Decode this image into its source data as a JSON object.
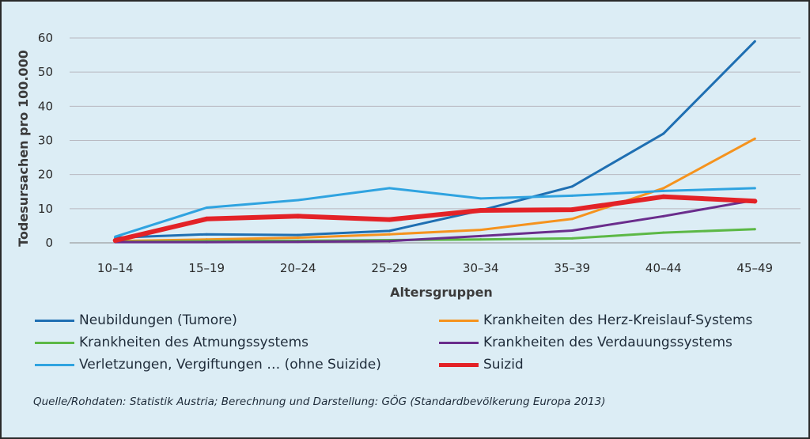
{
  "chart_data": {
    "type": "line",
    "categories": [
      "10–14",
      "15–19",
      "20–24",
      "25–29",
      "30–34",
      "35–39",
      "40–44",
      "45–49"
    ],
    "xlabel": "Altersgruppen",
    "ylabel": "Todesursachen pro 100.000",
    "ylim": [
      0,
      60
    ],
    "yticks": [
      0,
      10,
      20,
      30,
      40,
      50,
      60
    ],
    "grid": true,
    "legend_position": "bottom",
    "series": [
      {
        "name": "Neubildungen (Tumore)",
        "color": "#1f6fb2",
        "values": [
          1.5,
          2.5,
          2.3,
          3.5,
          9.5,
          16.5,
          32,
          59
        ]
      },
      {
        "name": "Krankheiten des Herz-Kreislauf-Systems",
        "color": "#f5931e",
        "values": [
          0.5,
          1,
          1.5,
          2.5,
          3.8,
          7,
          16,
          30.5
        ]
      },
      {
        "name": "Krankheiten des Atmungssystems",
        "color": "#5cb846",
        "values": [
          0.3,
          0.5,
          0.6,
          0.8,
          1,
          1.3,
          3,
          4
        ]
      },
      {
        "name": "Krankheiten des Verdauungssystems",
        "color": "#6a2d8c",
        "values": [
          0.2,
          0.2,
          0.3,
          0.5,
          2,
          3.6,
          7.8,
          12.5
        ]
      },
      {
        "name": "Verletzungen, Vergiftungen … (ohne Suizide)",
        "color": "#2fa3e0",
        "values": [
          1.8,
          10.3,
          12.5,
          16,
          13,
          13.8,
          15.2,
          16
        ]
      },
      {
        "name": "Suizid",
        "color": "#e32227",
        "values": [
          0.7,
          7,
          7.8,
          6.8,
          9.5,
          9.7,
          13.5,
          12.2
        ],
        "bold": true
      }
    ]
  },
  "source_note": "Quelle/Rohdaten: Statistik Austria; Berechnung und Darstellung: GÖG (Standardbevölkerung Europa 2013)"
}
